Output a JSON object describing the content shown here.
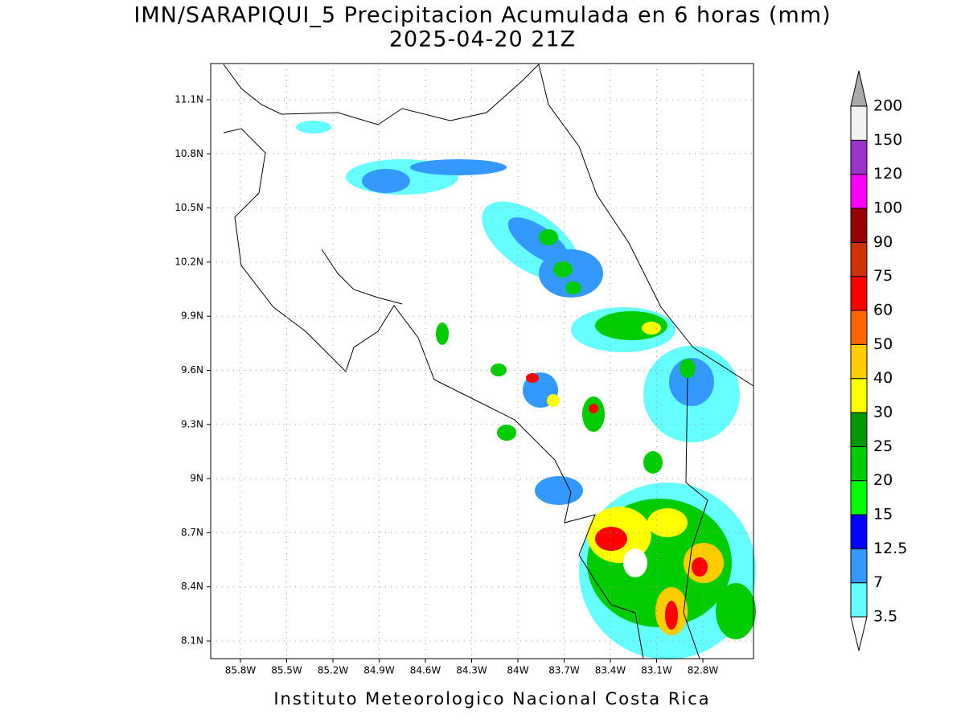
{
  "header": {
    "title": "IMN/SARAPIQUI_5 Precipitacion Acumulada en 6 horas (mm)",
    "subtitle": "2025-04-20 21Z"
  },
  "map": {
    "x_labels": [
      "85.8W",
      "85.5W",
      "85.2W",
      "84.9W",
      "84.6W",
      "84.3W",
      "84W",
      "83.7W",
      "83.4W",
      "83.1W",
      "82.8W"
    ],
    "y_labels": [
      "11.1N",
      "10.8N",
      "10.5N",
      "10.2N",
      "9.9N",
      "9.6N",
      "9.3N",
      "9N",
      "8.7N",
      "8.4N",
      "8.1N"
    ]
  },
  "colorbar": {
    "levels": [
      3.5,
      7,
      12.5,
      15,
      20,
      25,
      30,
      40,
      50,
      60,
      75,
      90,
      100,
      120,
      150,
      200
    ],
    "colors": [
      "#ffffff",
      "#66ffff",
      "#3399ff",
      "#0000ff",
      "#00ff00",
      "#00cc00",
      "#009900",
      "#ffff00",
      "#ffcc00",
      "#ff6600",
      "#ff0000",
      "#cc3300",
      "#990000",
      "#ff00ff",
      "#9933cc",
      "#f2f2f2",
      "#aaaaaa"
    ]
  },
  "footer": "Instituto Meteorologico Nacional Costa Rica"
}
